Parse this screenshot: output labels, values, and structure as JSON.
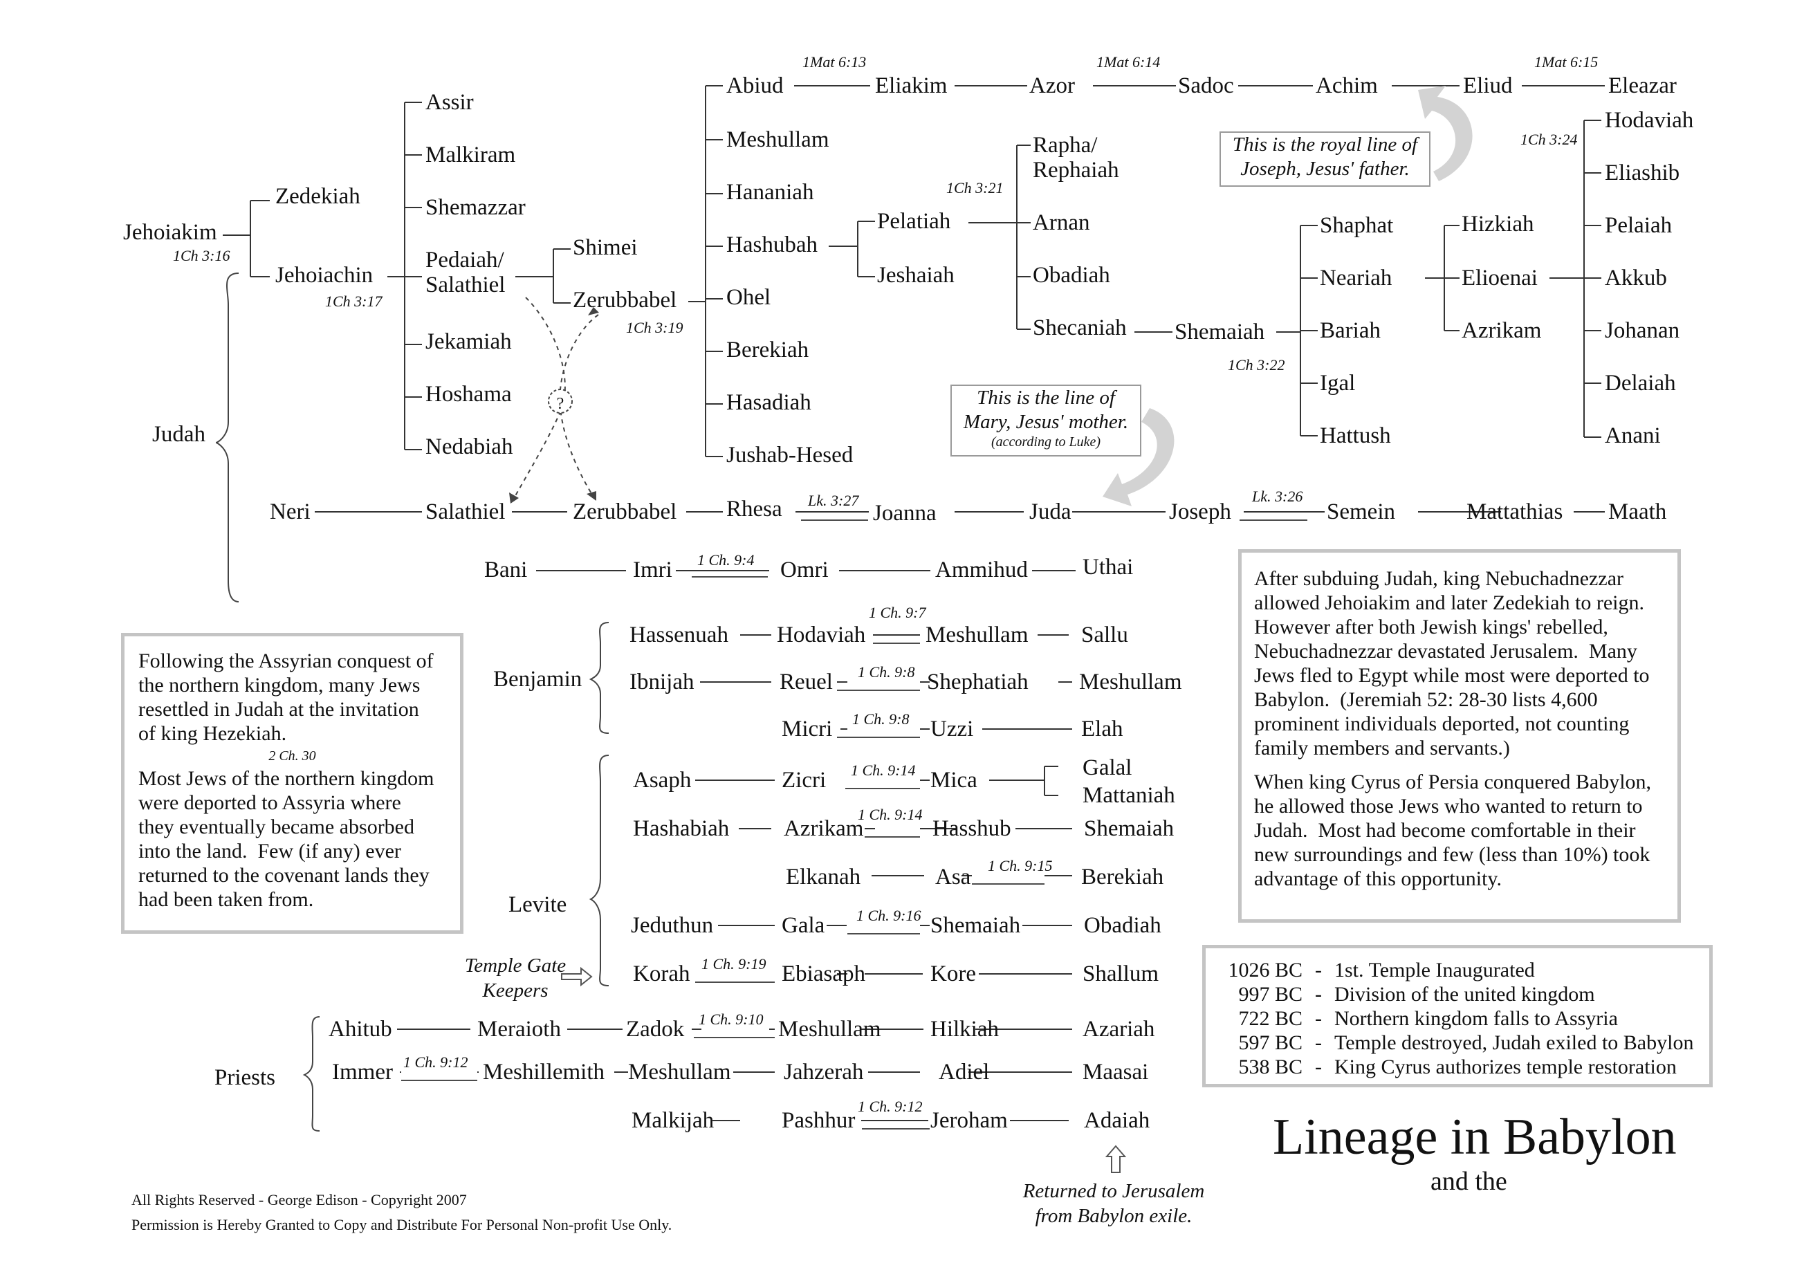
{
  "title": "Lineage in Babylon",
  "subtitle": "and the",
  "names": {
    "jehoiakim": "Jehoiakim",
    "zedekiah": "Zedekiah",
    "jehoiachin": "Jehoiachin",
    "assir": "Assir",
    "malkiram": "Malkiram",
    "shemazzar": "Shemazzar",
    "pedaiah": "Pedaiah/\nSalathiel",
    "jekamiah": "Jekamiah",
    "hoshama": "Hoshama",
    "nedabiah": "Nedabiah",
    "shimei": "Shimei",
    "zerubbabel1": "Zerubbabel",
    "abiud": "Abiud",
    "meshullam1": "Meshullam",
    "hananiah": "Hananiah",
    "hashubah": "Hashubah",
    "ohel": "Ohel",
    "berekiah1": "Berekiah",
    "hasadiah": "Hasadiah",
    "jushab": "Jushab-Hesed",
    "eliakim": "Eliakim",
    "azor": "Azor",
    "sadoc": "Sadoc",
    "achim": "Achim",
    "eliud": "Eliud",
    "eleazar": "Eleazar",
    "pelatiah": "Pelatiah",
    "jeshaiah": "Jeshaiah",
    "rapha": "Rapha/\nRephaiah",
    "arnan": "Arnan",
    "obadiah1": "Obadiah",
    "shecaniah": "Shecaniah",
    "shemaiah1": "Shemaiah",
    "shaphat": "Shaphat",
    "neariah": "Neariah",
    "bariah": "Bariah",
    "igal": "Igal",
    "hattush": "Hattush",
    "hizkiah": "Hizkiah",
    "elioenai": "Elioenai",
    "azrikam1": "Azrikam",
    "hodaviah1": "Hodaviah",
    "eliashib": "Eliashib",
    "pelaiah": "Pelaiah",
    "akkub": "Akkub",
    "johanan": "Johanan",
    "delaiah": "Delaiah",
    "anani": "Anani",
    "judah": "Judah",
    "neri": "Neri",
    "salathiel": "Salathiel",
    "zerubbabel2": "Zerubbabel",
    "rhesa": "Rhesa",
    "joanna": "Joanna",
    "juda": "Juda",
    "joseph": "Joseph",
    "semein": "Semein",
    "mattathias": "Mattathias",
    "maath": "Maath",
    "bani": "Bani",
    "imri": "Imri",
    "omri": "Omri",
    "ammihud": "Ammihud",
    "uthai": "Uthai",
    "benjamin": "Benjamin",
    "hassenuah": "Hassenuah",
    "hodaviah2": "Hodaviah",
    "meshullam2": "Meshullam",
    "sallu": "Sallu",
    "ibnijah": "Ibnijah",
    "reuel": "Reuel",
    "shephatiah": "Shephatiah",
    "meshullam3": "Meshullam",
    "micri": "Micri",
    "uzzi": "Uzzi",
    "elah": "Elah",
    "levite": "Levite",
    "asaph": "Asaph",
    "zicri": "Zicri",
    "mica": "Mica",
    "galal": "Galal",
    "mattaniah": "Mattaniah",
    "hashabiah": "Hashabiah",
    "azrikam2": "Azrikam",
    "hasshub": "Hasshub",
    "shemaiah2": "Shemaiah",
    "elkanah": "Elkanah",
    "asa": "Asa",
    "berekiah2": "Berekiah",
    "jeduthun": "Jeduthun",
    "gala": "Gala",
    "shemaiah3": "Shemaiah",
    "obadiah2": "Obadiah",
    "korah": "Korah",
    "ebiasaph": "Ebiasaph",
    "kore": "Kore",
    "shallum": "Shallum",
    "priests": "Priests",
    "ahitub": "Ahitub",
    "meraioth": "Meraioth",
    "zadok": "Zadok",
    "meshullam4": "Meshullam",
    "hilkiah": "Hilkiah",
    "azariah": "Azariah",
    "immer": "Immer",
    "meshillemith": "Meshillemith",
    "meshullam5": "Meshullam",
    "jahzerah": "Jahzerah",
    "adiel": "Adiel",
    "maasai": "Maasai",
    "malkijah": "Malkijah",
    "pashhur": "Pashhur",
    "jeroham": "Jeroham",
    "adaiah": "Adaiah"
  },
  "refs": {
    "r1": "1Mat 6:13",
    "r2": "1Mat 6:14",
    "r3": "1Mat 6:15",
    "r4": "1Ch 3:24",
    "r5": "1Ch 3:21",
    "r6": "1Ch 3:16",
    "r7": "1Ch 3:17",
    "r8": "1Ch 3:19",
    "r9": "1Ch 3:22",
    "r10": "Lk. 3:27",
    "r11": "Lk. 3:26",
    "r12": "1 Ch. 9:4",
    "r13": "1 Ch. 9:7",
    "r14": "1 Ch. 9:8",
    "r15": "1 Ch. 9:8",
    "r16": "1 Ch. 9:14",
    "r17": "1 Ch. 9:14",
    "r18": "1 Ch. 9:15",
    "r19": "1 Ch. 9:16",
    "r20": "1 Ch. 9:19",
    "r21": "1 Ch. 9:10",
    "r22": "1 Ch. 9:12",
    "r23": "1 Ch. 9:12",
    "r24": "2 Ch. 30"
  },
  "notes": {
    "royal": "This is the royal line of\nJoseph, Jesus' father.",
    "mary": "This is the line of\nMary, Jesus' mother.",
    "mary_sub": "(according to Luke)",
    "gate": "Temple Gate\nKeepers",
    "returned": "Returned to Jerusalem\nfrom Babylon exile.",
    "question": "?"
  },
  "left_box": {
    "p1": "Following the Assyrian conquest of\nthe northern kingdom, many Jews\nresettled in Judah at the invitation\nof king Hezekiah.",
    "p2": "Most Jews of the northern kingdom\nwere deported to Assyria where\nthey eventually became absorbed\ninto the land.  Few (if any) ever\nreturned to the covenant lands they\nhad been taken from."
  },
  "right_box": {
    "p1": "After subduing Judah, king Nebuchadnezzar\nallowed Jehoiakim and later Zedekiah to reign.\nHowever after both Jewish kings' rebelled,\nNebuchadnezzar devastated Jerusalem.  Many\nJews fled to Egypt while most were deported to\nBabylon.  (Jeremiah 52: 28-30 lists 4,600\nprominent individuals deported, not counting\nfamily members and servants.)",
    "p2": "When king Cyrus of Persia conquered Babylon,\nhe allowed those Jews who wanted to return to\nJudah.  Most had become comfortable in their\nnew surroundings and few (less than 10%) took\nadvantage of this opportunity."
  },
  "timeline": [
    {
      "date": "1026 BC",
      "event": "1st. Temple Inaugurated"
    },
    {
      "date": "997 BC",
      "event": "Division of the united kingdom"
    },
    {
      "date": "722 BC",
      "event": "Northern kingdom falls to Assyria"
    },
    {
      "date": "597 BC",
      "event": "Temple destroyed, Judah exiled to Babylon"
    },
    {
      "date": "538 BC",
      "event": "King Cyrus authorizes temple restoration"
    }
  ],
  "footer": {
    "line1": "All Rights Reserved  -  George Edison  -  Copyright 2007",
    "line2": "Permission is Hereby Granted to Copy and Distribute For Personal Non-profit Use Only."
  }
}
